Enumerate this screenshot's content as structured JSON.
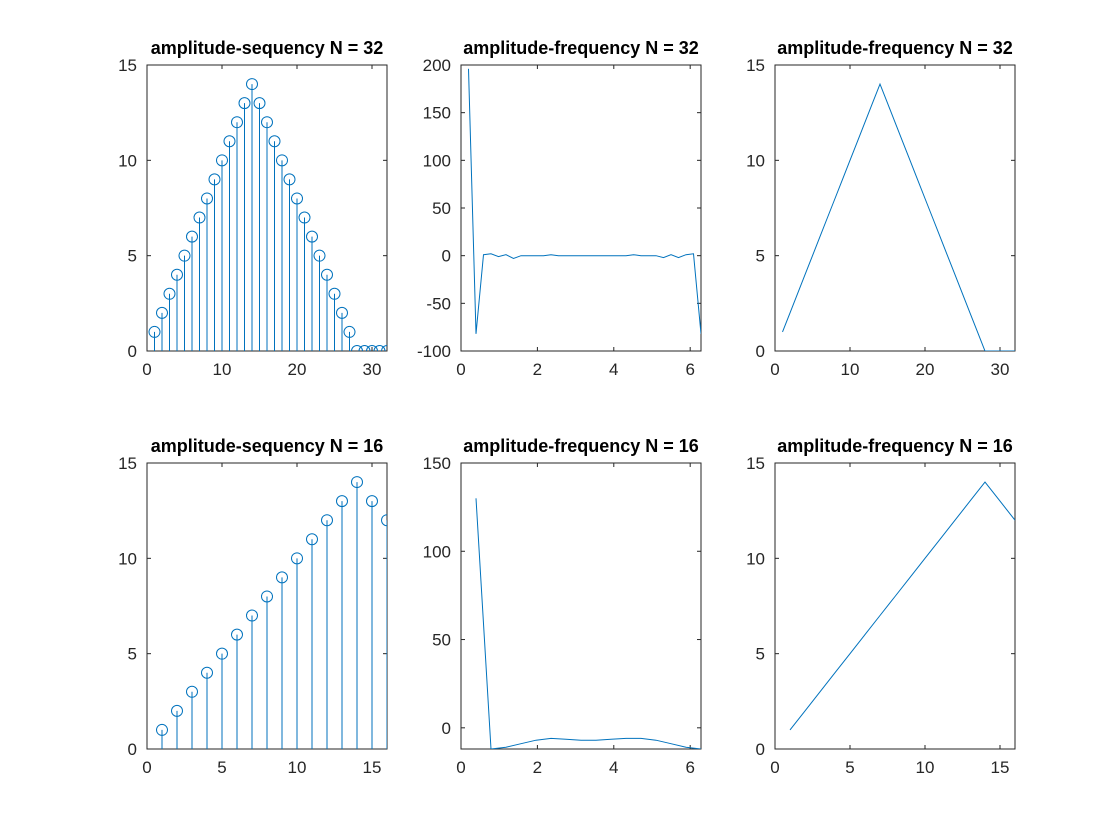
{
  "colors": {
    "series": "#0072BD",
    "axes": "#262626",
    "background": "#ffffff"
  },
  "chart_data": [
    {
      "type": "stem",
      "title": "amplitude-sequency N = 32",
      "xlim": [
        0,
        32
      ],
      "ylim": [
        0,
        15
      ],
      "xticks": [
        0,
        10,
        20,
        30
      ],
      "yticks": [
        0,
        5,
        10,
        15
      ],
      "x": [
        1,
        2,
        3,
        4,
        5,
        6,
        7,
        8,
        9,
        10,
        11,
        12,
        13,
        14,
        15,
        16,
        17,
        18,
        19,
        20,
        21,
        22,
        23,
        24,
        25,
        26,
        27,
        28,
        29,
        30,
        31,
        32
      ],
      "y": [
        1,
        2,
        3,
        4,
        5,
        6,
        7,
        8,
        9,
        10,
        11,
        12,
        13,
        14,
        13,
        12,
        11,
        10,
        9,
        8,
        7,
        6,
        5,
        4,
        3,
        2,
        1,
        0,
        0,
        0,
        0,
        0
      ]
    },
    {
      "type": "line",
      "title": "amplitude-frequency N = 32",
      "xlim": [
        0,
        6.2832
      ],
      "ylim": [
        -100,
        200
      ],
      "xticks": [
        0,
        2,
        4,
        6
      ],
      "yticks": [
        -100,
        -50,
        0,
        50,
        100,
        150,
        200
      ],
      "x": [
        0.196,
        0.393,
        0.589,
        0.785,
        0.982,
        1.178,
        1.374,
        1.571,
        1.767,
        1.963,
        2.16,
        2.356,
        2.553,
        2.749,
        2.945,
        3.142,
        3.338,
        3.534,
        3.731,
        3.927,
        4.123,
        4.32,
        4.516,
        4.712,
        4.909,
        5.105,
        5.301,
        5.498,
        5.694,
        5.89,
        6.087,
        6.283
      ],
      "y": [
        196,
        -82,
        1,
        2,
        -1,
        1,
        -3,
        0,
        0,
        0,
        0,
        1,
        0,
        0,
        0,
        0,
        0,
        0,
        0,
        0,
        0,
        0,
        1,
        0,
        0,
        0,
        -2,
        1,
        -2,
        1,
        2,
        -82
      ]
    },
    {
      "type": "line",
      "title": "amplitude-frequency N = 32",
      "xlim": [
        0,
        32
      ],
      "ylim": [
        0,
        15
      ],
      "xticks": [
        0,
        10,
        20,
        30
      ],
      "yticks": [
        0,
        5,
        10,
        15
      ],
      "x": [
        1,
        2,
        3,
        4,
        5,
        6,
        7,
        8,
        9,
        10,
        11,
        12,
        13,
        14,
        15,
        16,
        17,
        18,
        19,
        20,
        21,
        22,
        23,
        24,
        25,
        26,
        27,
        28,
        29,
        30,
        31,
        32
      ],
      "y": [
        1,
        2,
        3,
        4,
        5,
        6,
        7,
        8,
        9,
        10,
        11,
        12,
        13,
        14,
        13,
        12,
        11,
        10,
        9,
        8,
        7,
        6,
        5,
        4,
        3,
        2,
        1,
        0,
        0,
        0,
        0,
        0
      ]
    },
    {
      "type": "stem",
      "title": "amplitude-sequency N = 16",
      "xlim": [
        0,
        16
      ],
      "ylim": [
        0,
        15
      ],
      "xticks": [
        0,
        5,
        10,
        15
      ],
      "yticks": [
        0,
        5,
        10,
        15
      ],
      "x": [
        1,
        2,
        3,
        4,
        5,
        6,
        7,
        8,
        9,
        10,
        11,
        12,
        13,
        14,
        15,
        16
      ],
      "y": [
        1,
        2,
        3,
        4,
        5,
        6,
        7,
        8,
        9,
        10,
        11,
        12,
        13,
        14,
        13,
        12
      ]
    },
    {
      "type": "line",
      "title": "amplitude-frequency N = 16",
      "xlim": [
        0,
        6.2832
      ],
      "ylim": [
        -12,
        150
      ],
      "xticks": [
        0,
        2,
        4,
        6
      ],
      "yticks": [
        0,
        50,
        100,
        150
      ],
      "x": [
        0.393,
        0.785,
        1.178,
        1.571,
        1.963,
        2.356,
        2.749,
        3.142,
        3.534,
        3.927,
        4.32,
        4.712,
        5.105,
        5.498,
        5.89,
        6.283
      ],
      "y": [
        130,
        -12,
        -11,
        -9,
        -7,
        -6,
        -6.5,
        -7,
        -7,
        -6.5,
        -6,
        -6,
        -7,
        -9,
        -11,
        -12
      ]
    },
    {
      "type": "line",
      "title": "amplitude-frequency N = 16",
      "xlim": [
        0,
        16
      ],
      "ylim": [
        0,
        15
      ],
      "xticks": [
        0,
        5,
        10,
        15
      ],
      "yticks": [
        0,
        5,
        10,
        15
      ],
      "x": [
        1,
        2,
        3,
        4,
        5,
        6,
        7,
        8,
        9,
        10,
        11,
        12,
        13,
        14,
        15,
        16
      ],
      "y": [
        1,
        2,
        3,
        4,
        5,
        6,
        7,
        8,
        9,
        10,
        11,
        12,
        13,
        14,
        13,
        12
      ]
    }
  ]
}
